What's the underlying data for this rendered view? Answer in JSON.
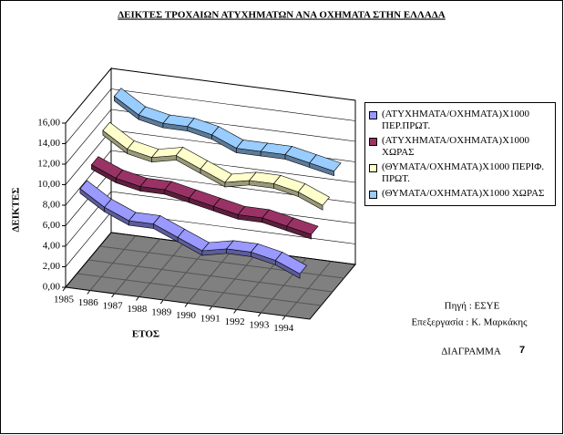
{
  "chart_data": {
    "type": "line",
    "title": "ΔΕΙΚΤΕΣ ΤΡΟΧΑΙΩΝ ΑΤΥΧΗΜΑΤΩΝ ΑΝΑ ΟΧΗΜΑΤΑ ΣΤΗΝ ΕΛΛΑΔΑ",
    "y_label": "ΔΕΙΚΤΕΣ",
    "x_label": "ΕΤΟΣ",
    "annotations": [
      "Πηγή : ΕΣΥΕ",
      "Επεξεργασία : Κ. Μαρκάκης",
      "ΔΙΑΓΡΑΜΜΑ",
      "7"
    ],
    "categories": [
      "1985",
      "1986",
      "1987",
      "1988",
      "1989",
      "1990",
      "1991",
      "1992",
      "1993",
      "1994"
    ],
    "series": [
      {
        "name": "(ΑΤΥΧΗΜΑΤΑ/ΟΧΗΜΑΤΑ)Χ1000 ΠΕΡ.ΠΡΩΤ.",
        "color": "#9999ff",
        "values": [
          9.5,
          8.0,
          7.0,
          7.0,
          6.0,
          5.0,
          5.5,
          5.5,
          5.0,
          4.0
        ]
      },
      {
        "name": "(ΑΤΥΧΗΜΑΤΑ/ΟΧΗΜΑΤΑ)Χ1000 ΧΩΡΑΣ",
        "color": "#993366",
        "values": [
          10.5,
          9.5,
          9.0,
          9.0,
          8.5,
          8.0,
          7.5,
          7.5,
          7.0,
          6.5
        ]
      },
      {
        "name": "(ΘΥΜΑΤΑ/ΟΧΗΜΑΤΑ)Χ1000 ΠΕΡΙΦ. ΠΡΩΤ.",
        "color": "#ffffcc",
        "values": [
          12.5,
          11.0,
          10.5,
          11.0,
          10.0,
          9.0,
          9.5,
          9.5,
          9.0,
          8.0
        ]
      },
      {
        "name": "(ΘΥΜΑΤΑ/ΟΧΗΜΑΤΑ)Χ1000 ΧΩΡΑΣ",
        "color": "#99ccff",
        "values": [
          14.5,
          13.0,
          12.5,
          12.5,
          12.0,
          11.0,
          11.0,
          11.0,
          10.5,
          10.0
        ]
      }
    ],
    "ylim": [
      0,
      16
    ],
    "yticks": [
      {
        "value": 0,
        "label": "0,00"
      },
      {
        "value": 2,
        "label": "2,00"
      },
      {
        "value": 4,
        "label": "4,00"
      },
      {
        "value": 6,
        "label": "6,00"
      },
      {
        "value": 8,
        "label": "8,00"
      },
      {
        "value": 10,
        "label": "10,00"
      },
      {
        "value": 12,
        "label": "12,00"
      },
      {
        "value": 14,
        "label": "14,00"
      },
      {
        "value": 16,
        "label": "16,00"
      }
    ],
    "grid": true,
    "floor_color": "#808080"
  }
}
